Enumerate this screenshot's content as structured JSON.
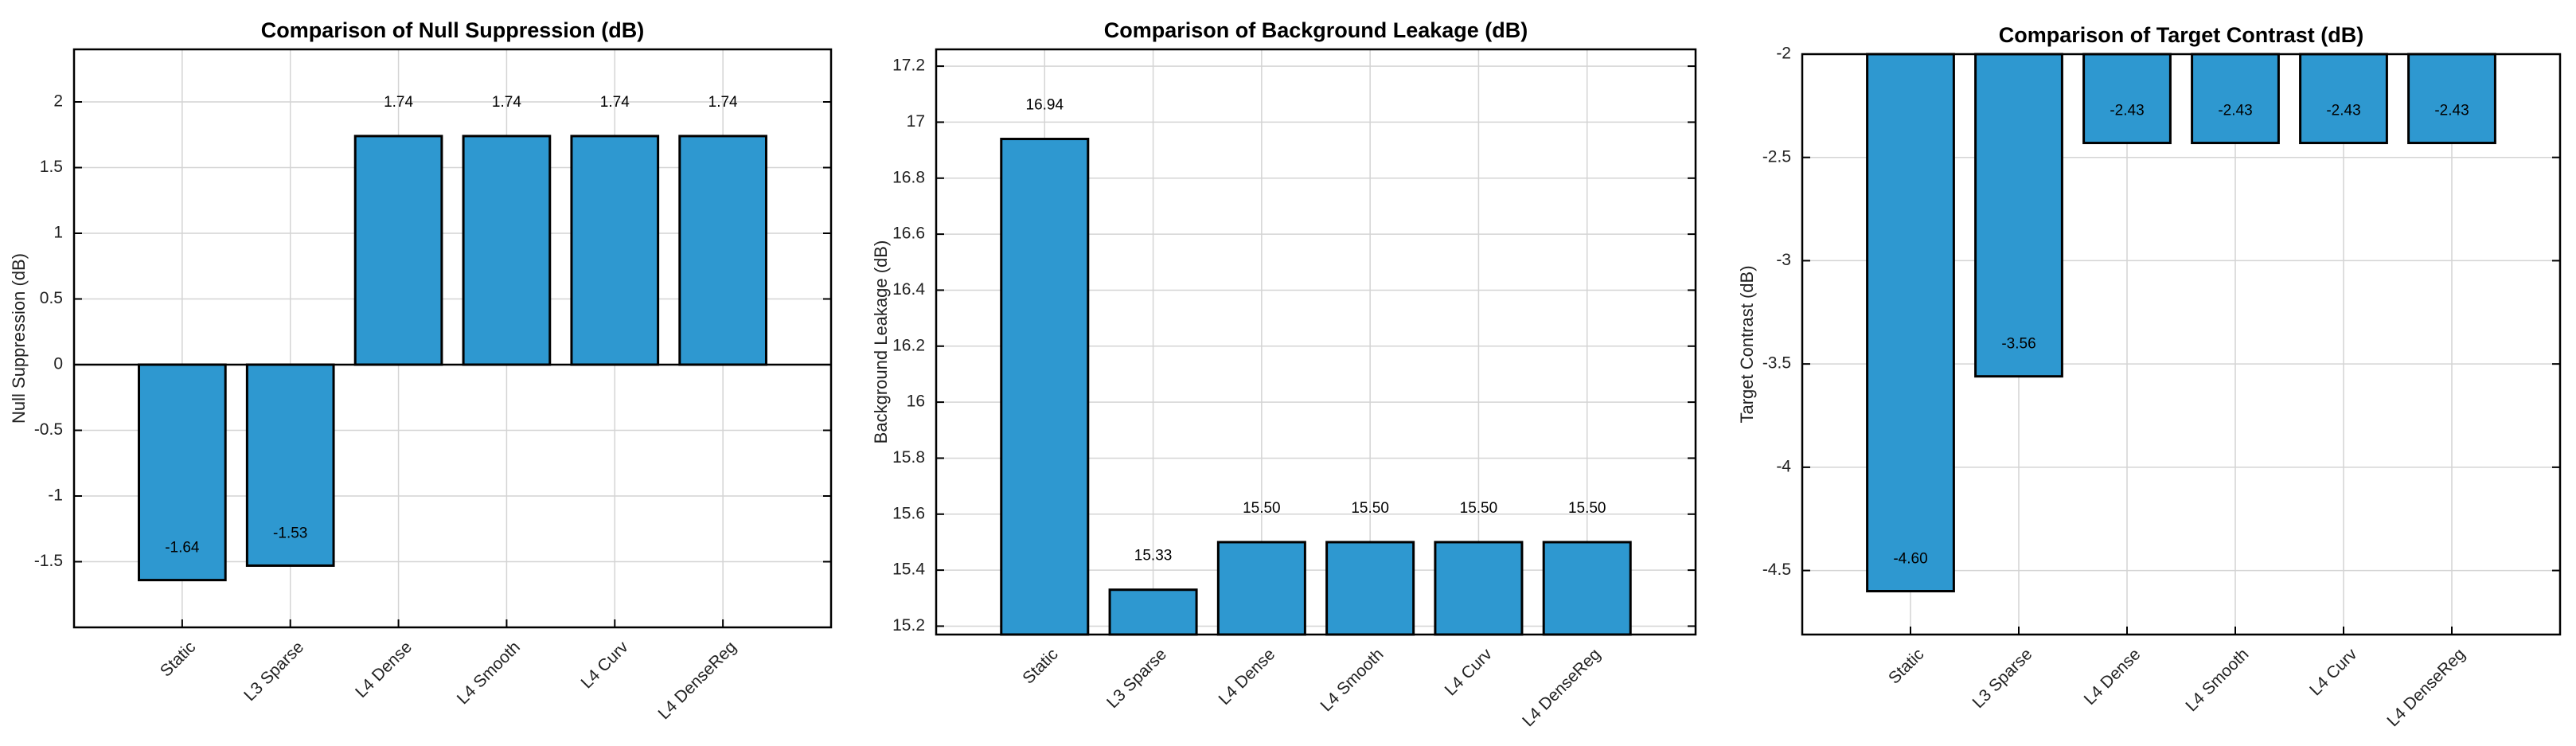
{
  "chart_data": [
    {
      "type": "bar",
      "title": "Comparison of Null Suppression (dB)",
      "y_label": "Null Suppression (dB)",
      "categories": [
        "Static",
        "L3 Sparse",
        "L4 Dense",
        "L4 Smooth",
        "L4 Curv",
        "L4 DenseReg"
      ],
      "values": [
        -1.64,
        -1.53,
        1.74,
        1.74,
        1.74,
        1.74
      ],
      "value_labels": [
        "-1.64",
        "-1.53",
        "1.74",
        "1.74",
        "1.74",
        "1.74"
      ],
      "color": "#2e98d0",
      "ylim": [
        -2,
        2.4
      ],
      "yticks": [
        -1.5,
        -1,
        -0.5,
        0,
        0.5,
        1,
        1.5,
        2
      ],
      "grid": true
    },
    {
      "type": "bar",
      "title": "Comparison of Background Leakage (dB)",
      "y_label": "Background Leakage (dB)",
      "categories": [
        "Static",
        "L3 Sparse",
        "L4 Dense",
        "L4 Smooth",
        "L4 Curv",
        "L4 DenseReg"
      ],
      "values": [
        16.94,
        15.33,
        15.5,
        15.5,
        15.5,
        15.5
      ],
      "value_labels": [
        "16.94",
        "15.33",
        "15.50",
        "15.50",
        "15.50",
        "15.50"
      ],
      "color": "#2e98d0",
      "ylim": [
        15.17,
        17.26
      ],
      "yticks": [
        15.2,
        15.4,
        15.6,
        15.8,
        16,
        16.2,
        16.4,
        16.6,
        16.8,
        17,
        17.2
      ],
      "grid": true
    },
    {
      "type": "bar",
      "title": "Comparison of Target Contrast (dB)",
      "y_label": "Target Contrast (dB)",
      "categories": [
        "Static",
        "L3 Sparse",
        "L4 Dense",
        "L4 Smooth",
        "L4 Curv",
        "L4 DenseReg"
      ],
      "values": [
        -4.6,
        -3.56,
        -2.43,
        -2.43,
        -2.43,
        -2.43
      ],
      "value_labels": [
        "-4.60",
        "-3.56",
        "-2.43",
        "-2.43",
        "-2.43",
        "-2.43"
      ],
      "color": "#2e98d0",
      "ylim": [
        -4.81,
        -2
      ],
      "yticks": [
        -4.5,
        -4,
        -3.5,
        -3,
        -2.5,
        -2
      ],
      "grid": true
    }
  ]
}
